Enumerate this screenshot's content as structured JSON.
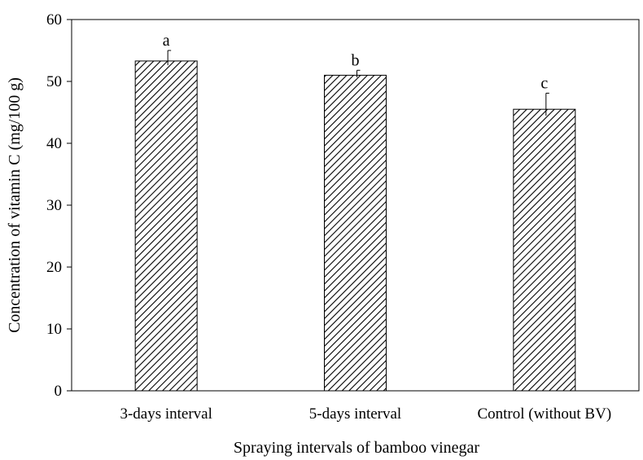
{
  "chart_data": {
    "type": "bar",
    "title": "",
    "xlabel": "Spraying intervals of bamboo vinegar",
    "ylabel": "Concentration of vitamin C (mg/100 g)",
    "ylim": [
      0,
      60
    ],
    "yticks": [
      0,
      10,
      20,
      30,
      40,
      50,
      60
    ],
    "categories": [
      "3-days interval",
      "5-days interval",
      "Control (without BV)"
    ],
    "values": [
      53.3,
      51.0,
      45.5
    ],
    "errors": [
      1.7,
      0.8,
      2.6
    ],
    "significance_labels": [
      "a",
      "b",
      "c"
    ],
    "bar_fill": "hatched",
    "bar_color": "#000000",
    "grid": false,
    "legend": "none"
  }
}
